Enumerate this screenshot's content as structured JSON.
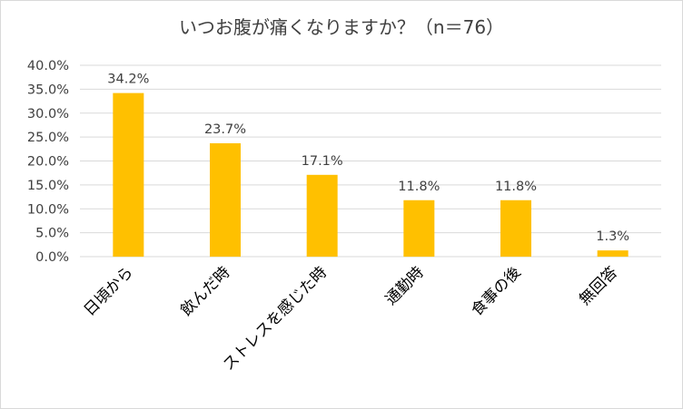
{
  "chart_data": {
    "type": "bar",
    "title": "いつお腹が痛くなりますか？（n＝76）",
    "categories": [
      "日頃から",
      "飲んだ時",
      "ストレスを感じた時",
      "通勤時",
      "食事の後",
      "無回答"
    ],
    "values": [
      34.2,
      23.7,
      17.1,
      11.8,
      11.8,
      1.3
    ],
    "data_labels": [
      "34.2%",
      "23.7%",
      "17.1%",
      "11.8%",
      "11.8%",
      "1.3%"
    ],
    "ylim": [
      0,
      40
    ],
    "yticks": [
      0,
      5,
      10,
      15,
      20,
      25,
      30,
      35,
      40
    ],
    "ytick_labels": [
      "0.0%",
      "5.0%",
      "10.0%",
      "15.0%",
      "20.0%",
      "25.0%",
      "30.0%",
      "35.0%",
      "40.0%"
    ],
    "xlabel": "",
    "ylabel": "",
    "grid": true,
    "bar_color": "#FFC000",
    "grid_color": "#d9d9d9"
  }
}
